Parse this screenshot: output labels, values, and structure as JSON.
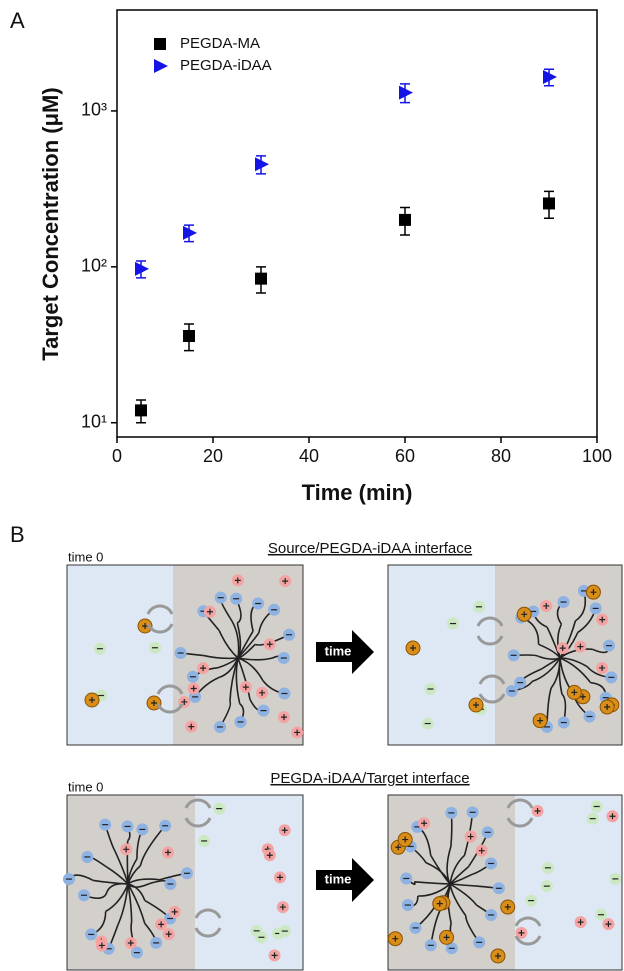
{
  "chart_data": {
    "type": "scatter",
    "panel_label": "A",
    "x_label": "Time (min)",
    "y_label": "Target Concentration (μM)",
    "xlim": [
      0,
      100
    ],
    "xticks": [
      0,
      20,
      40,
      60,
      80,
      100
    ],
    "ylim": [
      8.1,
      4440
    ],
    "log_y": true,
    "yticks": [
      {
        "value": 10,
        "label": "10¹"
      },
      {
        "value": 100,
        "label": "10²"
      },
      {
        "value": 1000,
        "label": "10³"
      }
    ],
    "legend": "top-left",
    "x": [
      5,
      15,
      30,
      60,
      90
    ],
    "series": [
      {
        "name": "PEGDA-MA",
        "color": "#000000",
        "marker": "square",
        "values": [
          12,
          36,
          84,
          200,
          255
        ],
        "errors": [
          2,
          7,
          16,
          40,
          50
        ]
      },
      {
        "name": "PEGDA-iDAA",
        "color": "#1414e6",
        "marker": "triangle-right",
        "values": [
          97,
          165,
          455,
          1310,
          1650
        ],
        "errors": [
          12,
          20,
          60,
          180,
          200
        ]
      }
    ]
  },
  "diagram": {
    "panel_label": "B",
    "top": {
      "title": "Source/PEGDA-iDAA interface",
      "start_label": "time 0",
      "arrow_label": "time"
    },
    "bottom": {
      "title": "PEGDA-iDAA/Target interface",
      "start_label": "time 0",
      "arrow_label": "time"
    }
  }
}
